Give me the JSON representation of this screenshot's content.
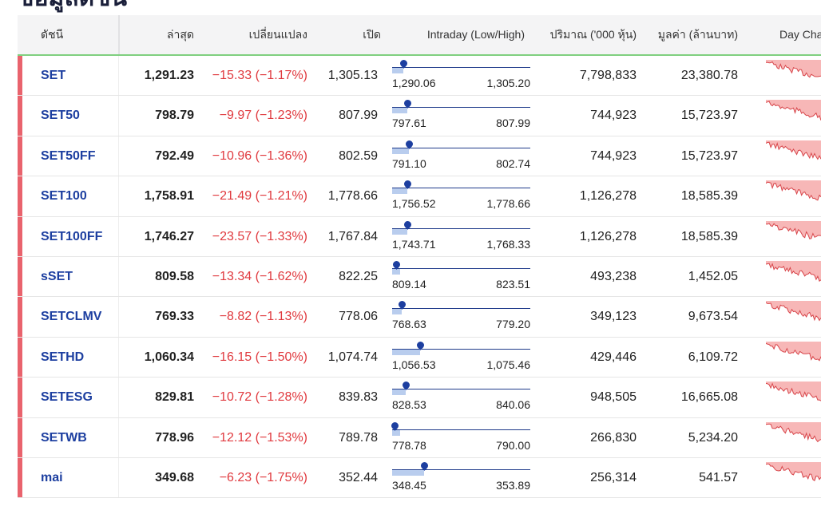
{
  "page": {
    "heading": "ข้อมูลดัชนี"
  },
  "columns": {
    "name": "ดัชนี",
    "last": "ล่าสุด",
    "change": "เปลี่ยนแปลง",
    "open": "เปิด",
    "intraday": "Intraday (Low/High)",
    "volume": "ปริมาณ ('000 หุ้น)",
    "value": "มูลค่า (ล้านบาท)",
    "daychart": "Day Cha"
  },
  "colors": {
    "negative": "#e0393e",
    "index_name": "#1d3fa0",
    "row_marker": "#e9636d",
    "spark_fill": "#f7b7b7",
    "spark_line": "#d8454a"
  },
  "rows": [
    {
      "name": "SET",
      "last": "1,291.23",
      "change": "−15.33 (−1.17%)",
      "open": "1,305.13",
      "low": "1,290.06",
      "high": "1,305.20",
      "pos": 0.08,
      "volume": "7,798,833",
      "value": "23,380.78"
    },
    {
      "name": "SET50",
      "last": "798.79",
      "change": "−9.97 (−1.23%)",
      "open": "807.99",
      "low": "797.61",
      "high": "807.99",
      "pos": 0.11,
      "volume": "744,923",
      "value": "15,723.97"
    },
    {
      "name": "SET50FF",
      "last": "792.49",
      "change": "−10.96 (−1.36%)",
      "open": "802.59",
      "low": "791.10",
      "high": "802.74",
      "pos": 0.12,
      "volume": "744,923",
      "value": "15,723.97"
    },
    {
      "name": "SET100",
      "last": "1,758.91",
      "change": "−21.49 (−1.21%)",
      "open": "1,778.66",
      "low": "1,756.52",
      "high": "1,778.66",
      "pos": 0.11,
      "volume": "1,126,278",
      "value": "18,585.39"
    },
    {
      "name": "SET100FF",
      "last": "1,746.27",
      "change": "−23.57 (−1.33%)",
      "open": "1,767.84",
      "low": "1,743.71",
      "high": "1,768.33",
      "pos": 0.11,
      "volume": "1,126,278",
      "value": "18,585.39"
    },
    {
      "name": "sSET",
      "last": "809.58",
      "change": "−13.34 (−1.62%)",
      "open": "822.25",
      "low": "809.14",
      "high": "823.51",
      "pos": 0.03,
      "volume": "493,238",
      "value": "1,452.05"
    },
    {
      "name": "SETCLMV",
      "last": "769.33",
      "change": "−8.82 (−1.13%)",
      "open": "778.06",
      "low": "768.63",
      "high": "779.20",
      "pos": 0.07,
      "volume": "349,123",
      "value": "9,673.54"
    },
    {
      "name": "SETHD",
      "last": "1,060.34",
      "change": "−16.15 (−1.50%)",
      "open": "1,074.74",
      "low": "1,056.53",
      "high": "1,075.46",
      "pos": 0.2,
      "volume": "429,446",
      "value": "6,109.72"
    },
    {
      "name": "SETESG",
      "last": "829.81",
      "change": "−10.72 (−1.28%)",
      "open": "839.83",
      "low": "828.53",
      "high": "840.06",
      "pos": 0.1,
      "volume": "948,505",
      "value": "16,665.08"
    },
    {
      "name": "SETWB",
      "last": "778.96",
      "change": "−12.12 (−1.53%)",
      "open": "789.78",
      "low": "778.78",
      "high": "790.00",
      "pos": 0.02,
      "volume": "266,830",
      "value": "5,234.20"
    },
    {
      "name": "mai",
      "last": "349.68",
      "change": "−6.23 (−1.75%)",
      "open": "352.44",
      "low": "348.45",
      "high": "353.89",
      "pos": 0.23,
      "volume": "256,314",
      "value": "541.57"
    }
  ]
}
